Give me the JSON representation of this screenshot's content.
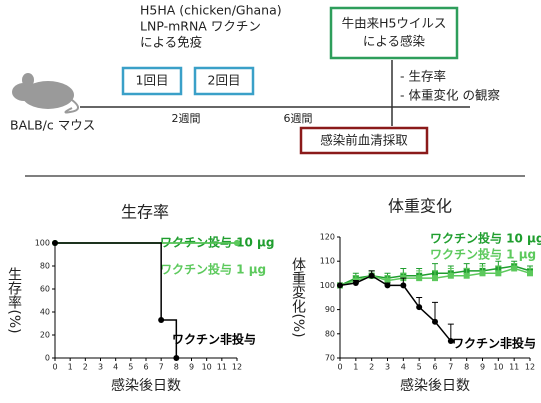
{
  "diagram": {
    "vaccine_lines": [
      "H5HA (chicken/Ghana)",
      "LNP-mRNA ワクチン",
      "による免疫"
    ],
    "doses": [
      "1回目",
      "2回目"
    ],
    "intervals": [
      "2週間",
      "6週間"
    ],
    "mouse": "BALB/c マウス",
    "serum": "感染前血清採取",
    "infection_lines": [
      "牛由来H5ウイルス",
      "による感染"
    ],
    "observations": [
      "- 生存率",
      "- 体重変化 の観察"
    ]
  },
  "chart_data": [
    {
      "type": "line",
      "step": true,
      "title": "生存率",
      "ylabel": "生存率(%)",
      "xlabel": "感染後日数",
      "xlim": [
        0,
        12
      ],
      "xticks": [
        0,
        1,
        2,
        3,
        4,
        5,
        6,
        7,
        8,
        9,
        10,
        11,
        12
      ],
      "ylim": [
        0,
        100
      ],
      "yticks": [
        0,
        20,
        40,
        60,
        80,
        100
      ],
      "series": [
        {
          "name": "ワクチン投与 10 μg",
          "color": "#1f9e2e",
          "marker": "circle",
          "x": [
            0,
            12
          ],
          "values": [
            100,
            100
          ]
        },
        {
          "name": "ワクチン投与 1 μg",
          "color": "#5cc95c",
          "marker": "circle",
          "x": [
            0,
            12
          ],
          "values": [
            100,
            100
          ]
        },
        {
          "name": "ワクチン非投与",
          "color": "#000000",
          "marker": "circle",
          "x": [
            0,
            7,
            8
          ],
          "values": [
            100,
            33,
            0
          ]
        }
      ]
    },
    {
      "type": "line",
      "step": false,
      "title": "体重変化",
      "ylabel": "体重変化(%)",
      "xlabel": "感染後日数",
      "xlim": [
        0,
        12
      ],
      "xticks": [
        0,
        1,
        2,
        3,
        4,
        5,
        6,
        7,
        8,
        9,
        10,
        11,
        12
      ],
      "ylim": [
        70,
        120
      ],
      "yticks": [
        70,
        80,
        90,
        100,
        110,
        120
      ],
      "series": [
        {
          "name": "ワクチン投与 10 μg",
          "color": "#1f9e2e",
          "marker": "square",
          "x": [
            0,
            1,
            2,
            3,
            4,
            5,
            6,
            7,
            8,
            9,
            10,
            11,
            12
          ],
          "values": [
            100,
            103,
            104,
            103,
            104,
            104,
            105,
            105,
            106,
            106,
            107,
            108,
            106
          ],
          "errors": [
            1,
            2,
            2,
            2,
            3,
            3,
            4,
            3,
            3,
            3,
            3,
            2,
            2
          ]
        },
        {
          "name": "ワクチン投与 1 μg",
          "color": "#5cc95c",
          "marker": "square",
          "x": [
            0,
            1,
            2,
            3,
            4,
            5,
            6,
            7,
            8,
            9,
            10,
            11,
            12
          ],
          "values": [
            100,
            102,
            104,
            102,
            103,
            103,
            103,
            104,
            104,
            105,
            105,
            107,
            105
          ],
          "errors": [
            1,
            2,
            2,
            2,
            2,
            3,
            3,
            3,
            3,
            3,
            3,
            2,
            2
          ]
        },
        {
          "name": "ワクチン非投与",
          "color": "#000000",
          "marker": "circle",
          "x": [
            0,
            1,
            2,
            3,
            4,
            5,
            6,
            7
          ],
          "values": [
            100,
            101,
            104,
            100,
            100,
            91,
            85,
            77
          ],
          "errors": [
            0,
            1,
            2,
            1,
            3,
            4,
            8,
            7
          ]
        }
      ]
    }
  ]
}
